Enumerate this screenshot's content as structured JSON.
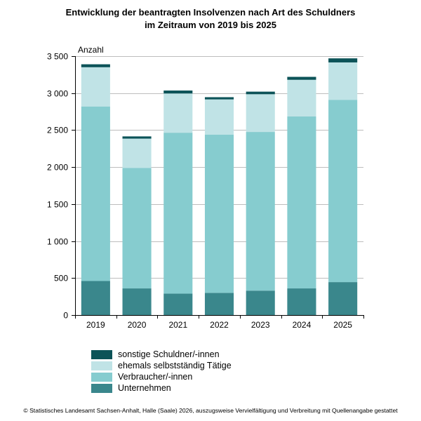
{
  "chart_data": {
    "type": "stacked-bar",
    "title_line1": "Entwicklung der beantragten Insolvenzen nach Art des Schuldners",
    "title_line2": "im Zeitraum von 2019 bis 2025",
    "ylabel": "Anzahl",
    "xlabel": "",
    "ylim": [
      0,
      3500
    ],
    "yticks": [
      0,
      500,
      1000,
      1500,
      2000,
      2500,
      3000,
      3500
    ],
    "ytick_labels": [
      "0",
      "500",
      "1 000",
      "1 500",
      "2 000",
      "2 500",
      "3 000",
      "3 500"
    ],
    "categories": [
      "2019",
      "2020",
      "2021",
      "2022",
      "2023",
      "2024",
      "2025"
    ],
    "series": [
      {
        "name": "Unternehmen",
        "color": "#3a878c",
        "values": [
          460,
          360,
          290,
          300,
          330,
          360,
          445
        ]
      },
      {
        "name": "Verbraucher/-innen",
        "color": "#86cccf",
        "values": [
          2360,
          1630,
          2175,
          2140,
          2145,
          2325,
          2465
        ]
      },
      {
        "name": "ehemals selbstständig Tätige",
        "color": "#c0e3e6",
        "values": [
          530,
          395,
          530,
          475,
          510,
          495,
          505
        ]
      },
      {
        "name": "sonstige Schuldner/-innen",
        "color": "#0c5358",
        "values": [
          40,
          30,
          40,
          30,
          35,
          40,
          55
        ]
      }
    ],
    "legend_order": [
      3,
      2,
      1,
      0
    ],
    "grid": true,
    "legend_position": "bottom-left"
  },
  "footer": "© Statistisches Landesamt Sachsen-Anhalt, Halle (Saale) 2026, auszugsweise Vervielfältigung und Verbreitung mit Quellenangabe gestattet"
}
